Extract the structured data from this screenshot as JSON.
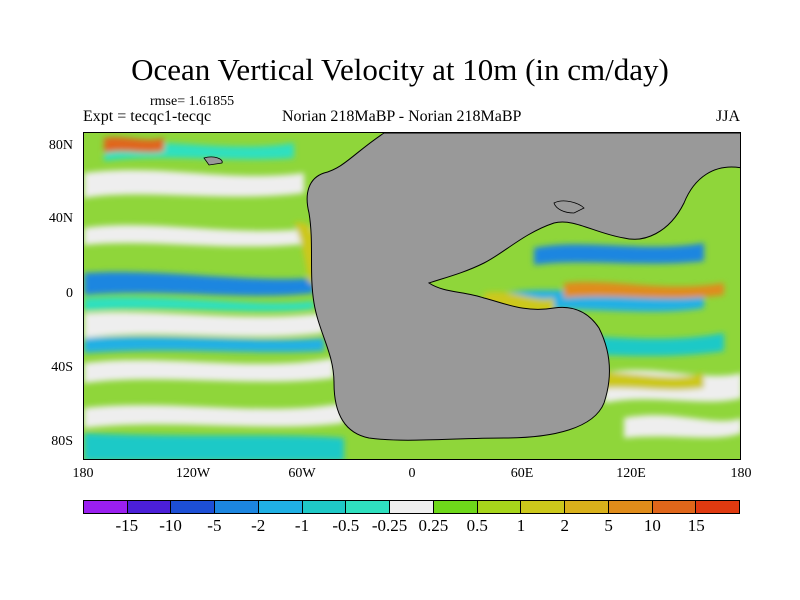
{
  "title": "Ocean Vertical Velocity at 10m (in cm/day)",
  "rmse_label": "rmse= 1.61855",
  "expt_label": "Expt = tecqc1-tecqc",
  "comparison_label": "Norian 218MaBP - Norian 218MaBP",
  "season_label": "JJA",
  "y_axis_labels": [
    "80N",
    "40N",
    "0",
    "40S",
    "80S"
  ],
  "x_axis_labels": [
    "180",
    "120W",
    "60W",
    "0",
    "60E",
    "120E",
    "180"
  ],
  "colorbar": {
    "colors": [
      "#9a1ff0",
      "#4b1fd8",
      "#1d4fd6",
      "#1c86e0",
      "#20b0e4",
      "#1fc9c7",
      "#2fe0bf",
      "#eeeeee",
      "#6ed81a",
      "#a7d51b",
      "#ccc81b",
      "#d9b11b",
      "#e08c1a",
      "#e0661a",
      "#e03a10"
    ],
    "labels": [
      "-15",
      "-10",
      "-5",
      "-2",
      "-1",
      "-0.5",
      "-0.25",
      "0.25",
      "0.5",
      "1",
      "2",
      "5",
      "10",
      "15"
    ]
  },
  "colors": {
    "land": "#999999",
    "background_field": "#8fd63a"
  }
}
